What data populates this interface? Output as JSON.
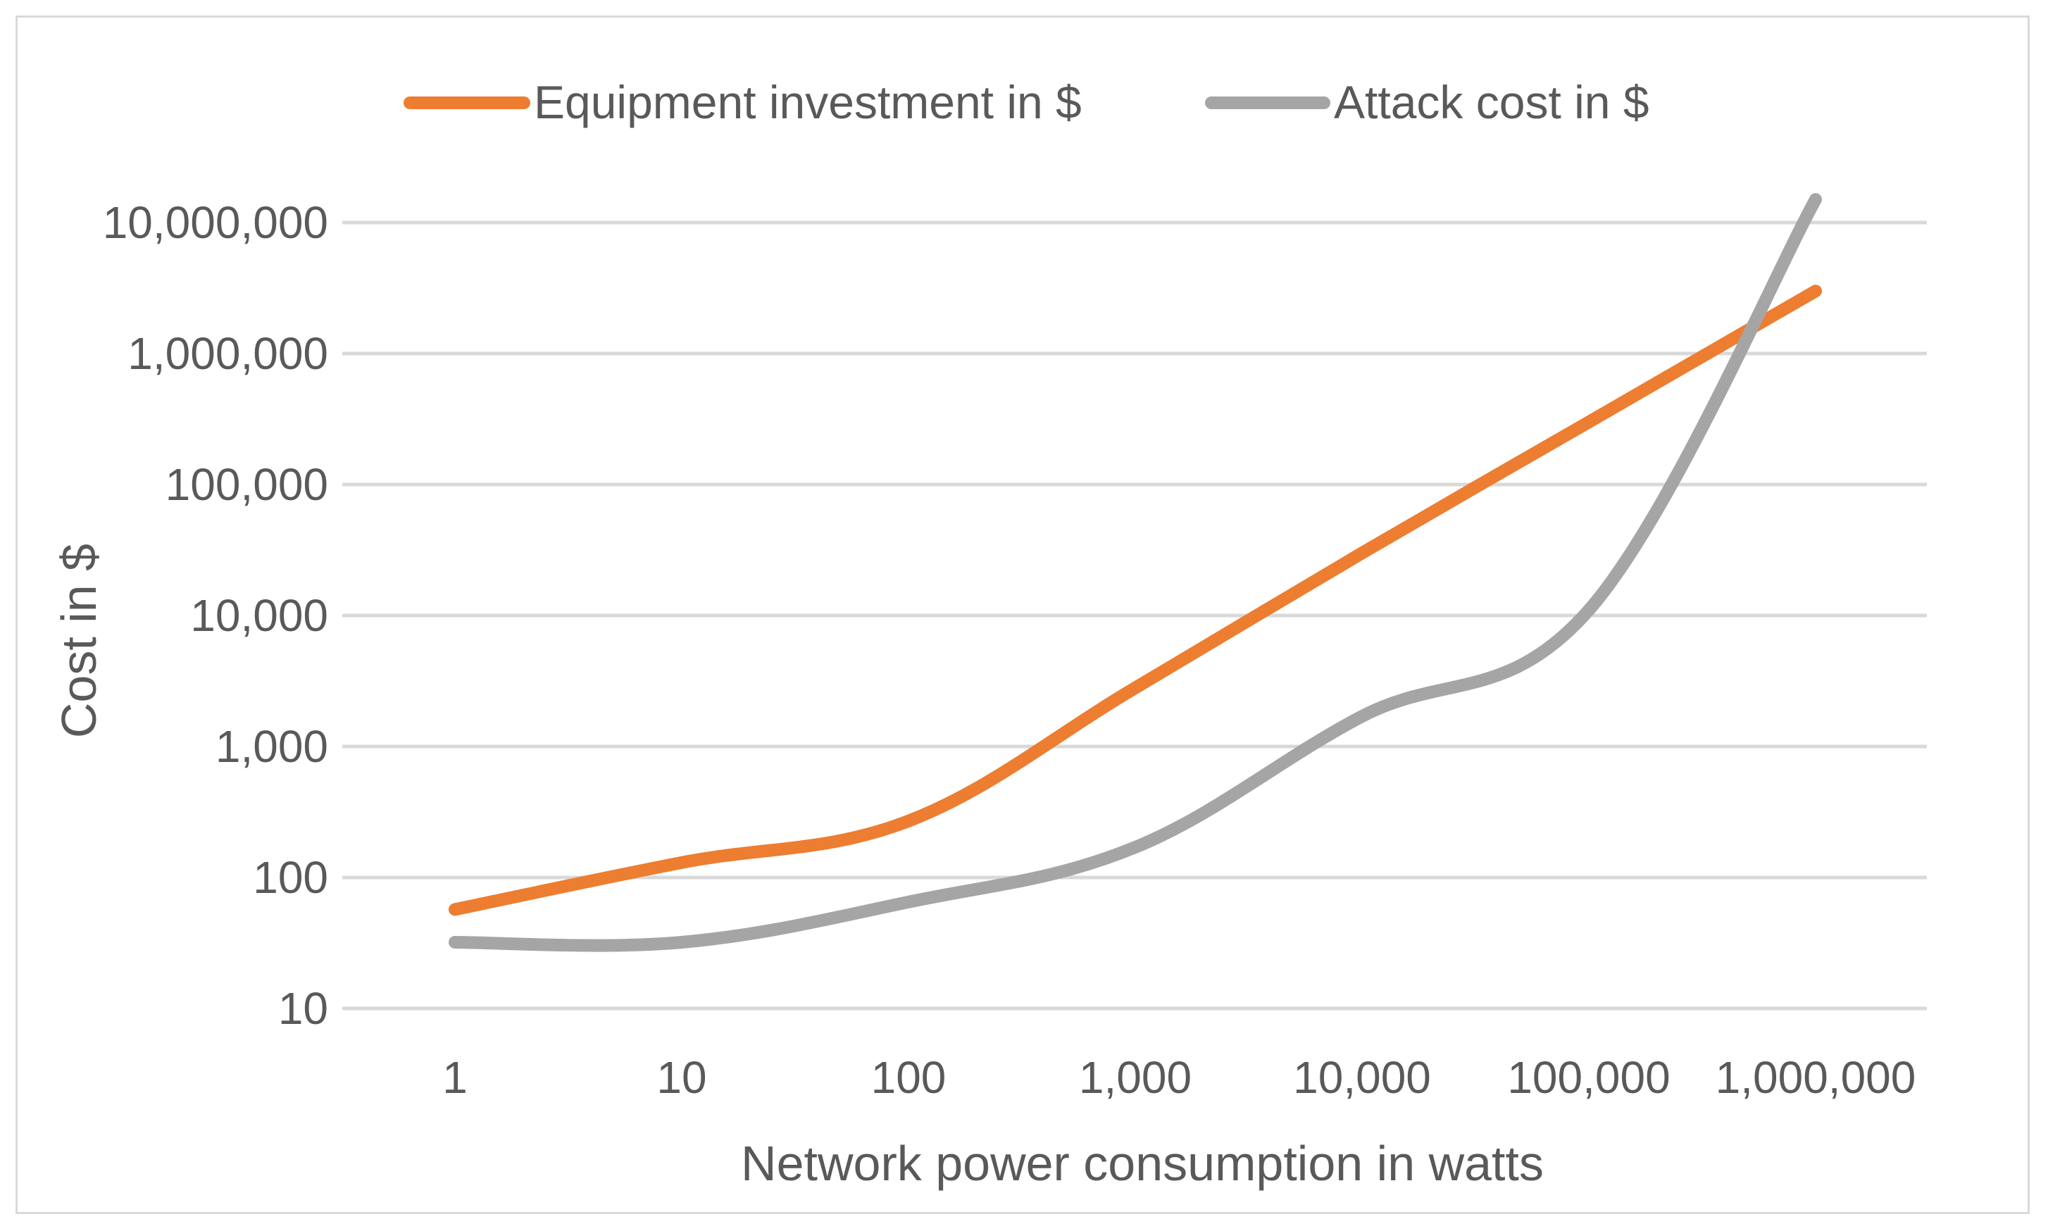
{
  "chart_data": {
    "type": "line",
    "title": "",
    "xlabel": "Network power consumption in watts",
    "ylabel": "Cost in $",
    "x_scale": "log",
    "y_scale": "log",
    "xlim": [
      1,
      1000000
    ],
    "ylim": [
      10,
      10000000
    ],
    "x_ticks": [
      1,
      10,
      100,
      1000,
      10000,
      100000,
      1000000
    ],
    "x_tick_labels": [
      "1",
      "10",
      "100",
      "1,000",
      "10,000",
      "100,000",
      "1,000,000"
    ],
    "y_ticks": [
      10,
      100,
      1000,
      10000,
      100000,
      1000000,
      10000000
    ],
    "y_tick_labels": [
      "10",
      "100",
      "1,000",
      "10,000",
      "100,000",
      "1,000,000",
      "10,000,000"
    ],
    "grid": true,
    "legend_position": "top",
    "series": [
      {
        "name": "Equipment investment in $",
        "color": "#ED7D31",
        "x": [
          1,
          10,
          100,
          1000,
          10000,
          100000,
          1000000
        ],
        "values": [
          57,
          130,
          270,
          2800,
          30000,
          300000,
          3000000
        ]
      },
      {
        "name": "Attack cost in $",
        "color": "#A5A5A5",
        "x": [
          1,
          10,
          100,
          1000,
          10000,
          100000,
          1000000
        ],
        "values": [
          32,
          32,
          65,
          170,
          1700,
          11000,
          15000000
        ]
      }
    ]
  }
}
